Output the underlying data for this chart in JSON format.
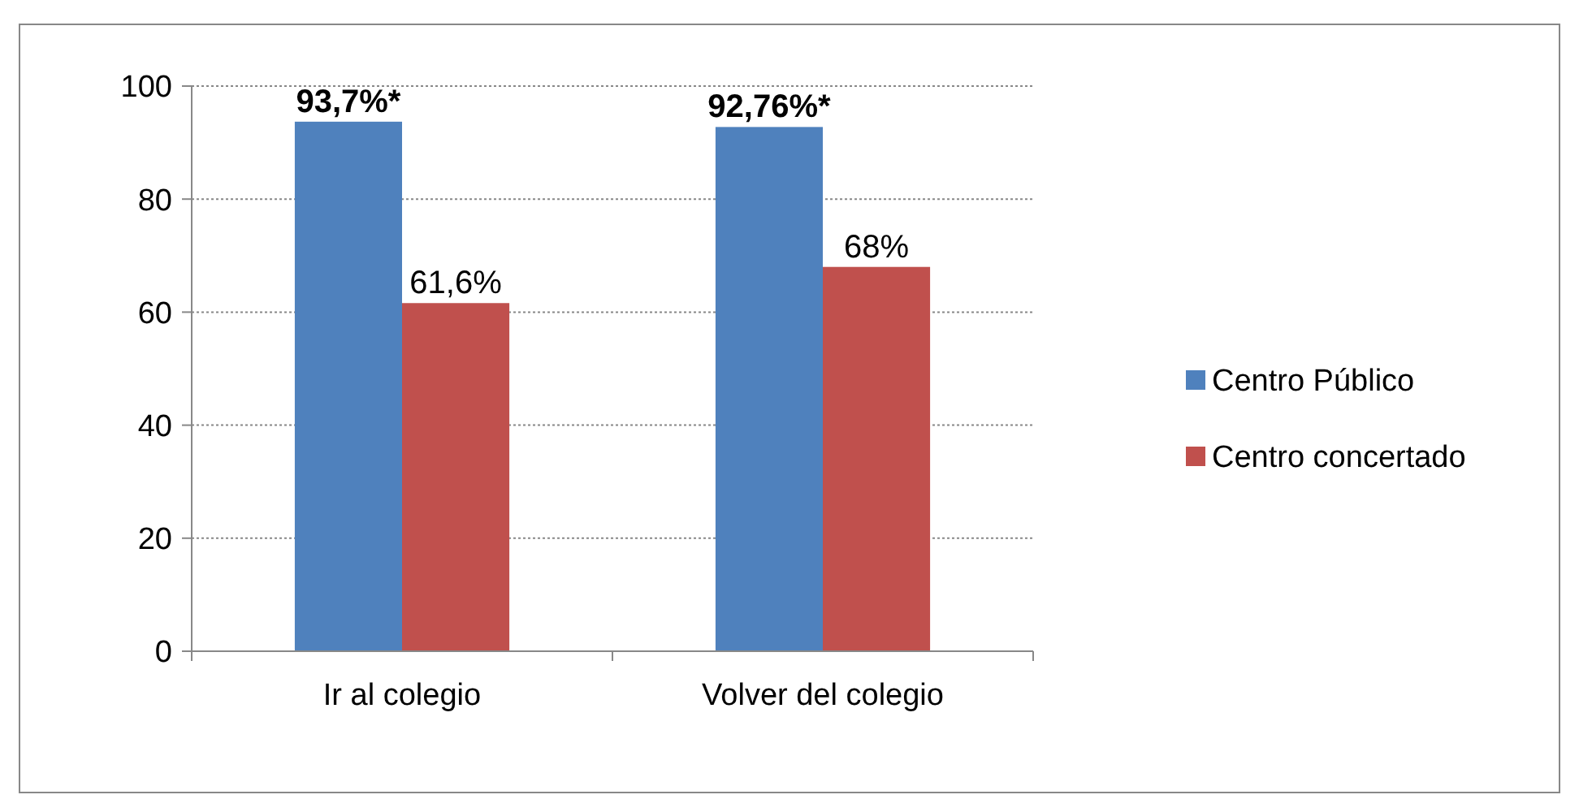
{
  "chart_data": {
    "type": "bar",
    "categories": [
      "Ir al colegio",
      "Volver del colegio"
    ],
    "series": [
      {
        "name": "Centro Público",
        "color": "#4f81bd",
        "values": [
          93.7,
          92.76
        ],
        "value_labels": [
          "93,7%*",
          "92,76%*"
        ]
      },
      {
        "name": "Centro concertado",
        "color": "#c0504d",
        "values": [
          61.6,
          68
        ],
        "value_labels": [
          "61,6%",
          "68%"
        ]
      }
    ],
    "ylim": [
      0,
      100
    ],
    "yticks": [
      0,
      20,
      40,
      60,
      80,
      100
    ],
    "grid": "y",
    "legend": "right"
  }
}
